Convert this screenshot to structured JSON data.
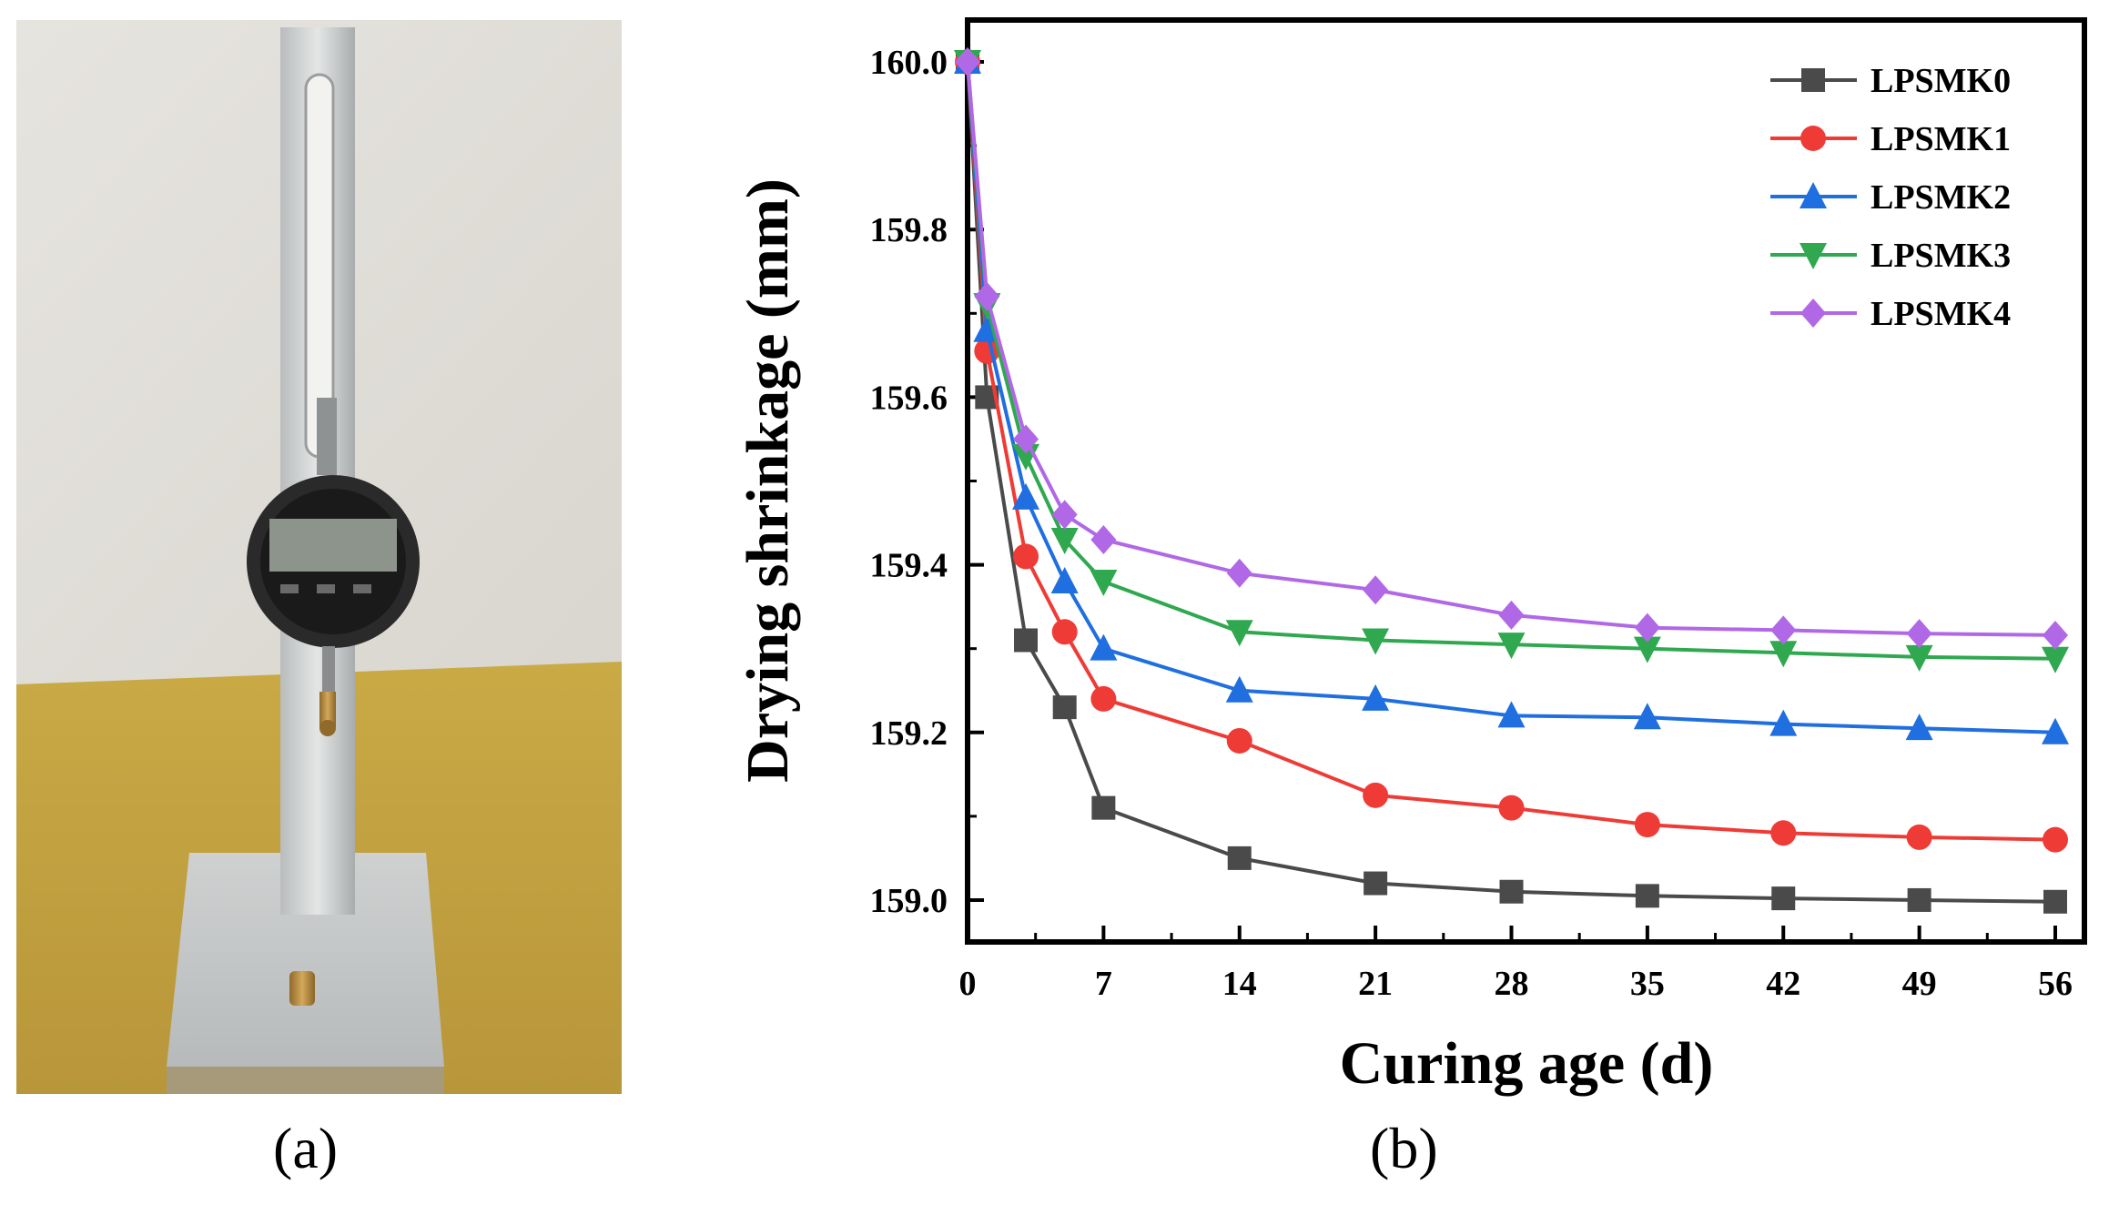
{
  "figure": {
    "panel_a_label": "(a)",
    "panel_b_label": "(b)"
  },
  "photo": {
    "subject": "digital dial gauge comparator stand"
  },
  "colors": {
    "LPSMK0": "#4a4a4a",
    "LPSMK1": "#ef3b36",
    "LPSMK2": "#1f6fe0",
    "LPSMK3": "#2fa84f",
    "LPSMK4": "#b168e6"
  },
  "chart_data": {
    "type": "line",
    "title": "",
    "xlabel": "Curing age (d)",
    "ylabel": "Drying shrinkage (mm)",
    "xlim": [
      0,
      57.5
    ],
    "ylim": [
      158.95,
      160.05
    ],
    "xticks": [
      0,
      7,
      14,
      21,
      28,
      35,
      42,
      49,
      56
    ],
    "xtick_labels": [
      "0",
      "7",
      "14",
      "21",
      "28",
      "35",
      "42",
      "49",
      "56"
    ],
    "yticks": [
      159.0,
      159.2,
      159.4,
      159.6,
      159.8,
      160.0
    ],
    "ytick_labels": [
      "159.0",
      "159.2",
      "159.4",
      "159.6",
      "159.8",
      "160.0"
    ],
    "legend_position": "top-right",
    "x": [
      0,
      1,
      3,
      5,
      7,
      14,
      21,
      28,
      35,
      42,
      49,
      56
    ],
    "series": [
      {
        "name": "LPSMK0",
        "marker": "square",
        "values": [
          160.0,
          159.6,
          159.31,
          159.23,
          159.11,
          159.05,
          159.02,
          159.01,
          159.005,
          159.002,
          159.0,
          158.998
        ]
      },
      {
        "name": "LPSMK1",
        "marker": "circle",
        "values": [
          160.0,
          159.655,
          159.41,
          159.32,
          159.24,
          159.19,
          159.125,
          159.11,
          159.09,
          159.08,
          159.075,
          159.072
        ]
      },
      {
        "name": "LPSMK2",
        "marker": "triangle-up",
        "values": [
          160.0,
          159.68,
          159.48,
          159.38,
          159.3,
          159.25,
          159.24,
          159.22,
          159.218,
          159.21,
          159.205,
          159.2
        ]
      },
      {
        "name": "LPSMK3",
        "marker": "triangle-down",
        "values": [
          160.0,
          159.71,
          159.53,
          159.43,
          159.38,
          159.32,
          159.31,
          159.305,
          159.3,
          159.295,
          159.29,
          159.288
        ]
      },
      {
        "name": "LPSMK4",
        "marker": "diamond",
        "values": [
          160.0,
          159.72,
          159.55,
          159.46,
          159.43,
          159.39,
          159.37,
          159.34,
          159.325,
          159.322,
          159.318,
          159.316
        ]
      }
    ]
  }
}
